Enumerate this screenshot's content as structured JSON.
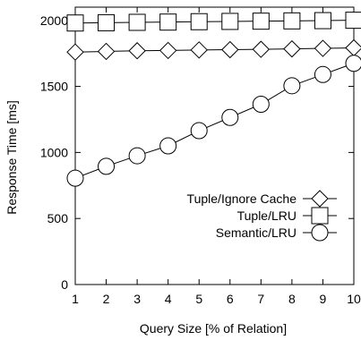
{
  "chart_data": {
    "type": "line",
    "title": "",
    "xlabel": "Query Size [% of Relation]",
    "ylabel": "Response Time [ms]",
    "x": [
      1,
      2,
      3,
      4,
      5,
      6,
      7,
      8,
      9,
      10
    ],
    "xlim": [
      1,
      10
    ],
    "ylim": [
      0,
      2100
    ],
    "xticks": [
      "1",
      "2",
      "3",
      "4",
      "5",
      "6",
      "7",
      "8",
      "9",
      "10"
    ],
    "yticks": [
      "0",
      "500",
      "1000",
      "1500",
      "2000"
    ],
    "ytick_values": [
      0,
      500,
      1000,
      1500,
      2000
    ],
    "grid": false,
    "legend_position": "bottom-right",
    "series": [
      {
        "name": "Tuple/Ignore Cache",
        "marker": "diamond",
        "values": [
          1760,
          1765,
          1770,
          1772,
          1776,
          1778,
          1781,
          1784,
          1788,
          1792
        ]
      },
      {
        "name": "Tuple/LRU",
        "marker": "square",
        "values": [
          1980,
          1982,
          1985,
          1987,
          1990,
          1992,
          1994,
          1996,
          1998,
          2001
        ]
      },
      {
        "name": "Semantic/LRU",
        "marker": "circle",
        "values": [
          805,
          895,
          975,
          1050,
          1165,
          1265,
          1365,
          1505,
          1590,
          1675
        ]
      }
    ]
  }
}
